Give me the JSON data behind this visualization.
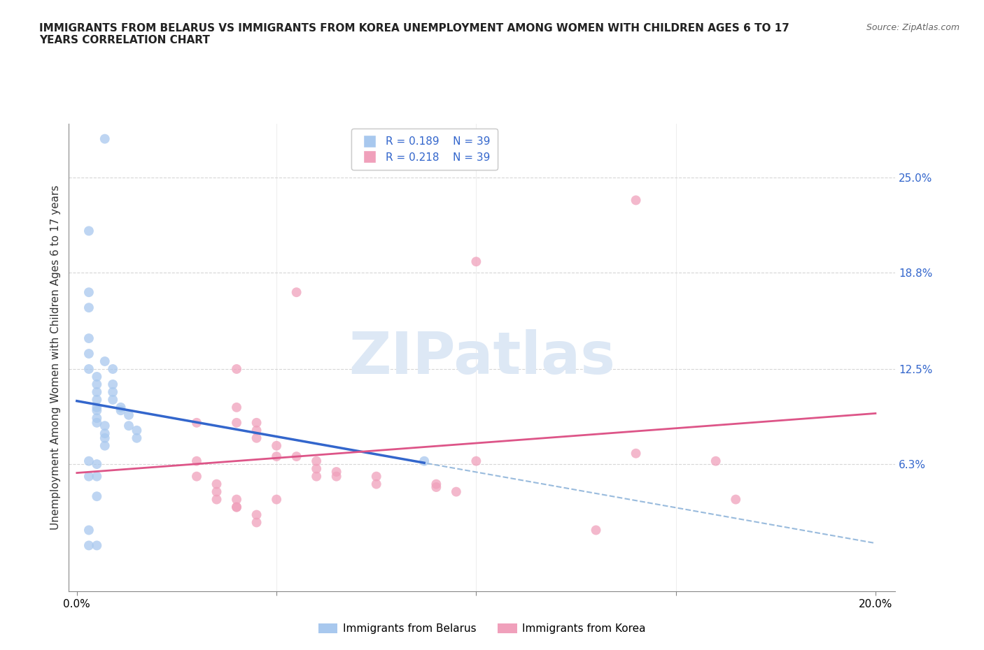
{
  "title": "IMMIGRANTS FROM BELARUS VS IMMIGRANTS FROM KOREA UNEMPLOYMENT AMONG WOMEN WITH CHILDREN AGES 6 TO 17\nYEARS CORRELATION CHART",
  "source": "Source: ZipAtlas.com",
  "ylabel": "Unemployment Among Women with Children Ages 6 to 17 years",
  "ytick_labels": [
    "25.0%",
    "18.8%",
    "12.5%",
    "6.3%"
  ],
  "ytick_values": [
    0.25,
    0.188,
    0.125,
    0.063
  ],
  "xlim": [
    -0.002,
    0.205
  ],
  "ylim": [
    -0.02,
    0.285
  ],
  "belarus_color": "#a8c8ee",
  "korea_color": "#f0a0bb",
  "belarus_line_color": "#3366cc",
  "korea_line_color": "#dd5588",
  "belarus_dashed_color": "#99bbdd",
  "R_belarus": 0.189,
  "N_belarus": 39,
  "R_korea": 0.218,
  "N_korea": 39,
  "belarus_scatter_x": [
    0.007,
    0.003,
    0.003,
    0.003,
    0.003,
    0.003,
    0.003,
    0.005,
    0.005,
    0.005,
    0.005,
    0.005,
    0.005,
    0.005,
    0.005,
    0.007,
    0.007,
    0.007,
    0.007,
    0.009,
    0.009,
    0.009,
    0.009,
    0.011,
    0.011,
    0.013,
    0.013,
    0.015,
    0.015,
    0.003,
    0.005,
    0.005,
    0.007,
    0.087,
    0.003,
    0.003,
    0.003,
    0.005,
    0.005
  ],
  "belarus_scatter_y": [
    0.275,
    0.215,
    0.175,
    0.165,
    0.145,
    0.135,
    0.125,
    0.12,
    0.115,
    0.11,
    0.105,
    0.1,
    0.098,
    0.093,
    0.09,
    0.088,
    0.083,
    0.08,
    0.075,
    0.125,
    0.115,
    0.11,
    0.105,
    0.1,
    0.098,
    0.095,
    0.088,
    0.085,
    0.08,
    0.065,
    0.063,
    0.055,
    0.13,
    0.065,
    0.055,
    0.02,
    0.01,
    0.042,
    0.01
  ],
  "korea_scatter_x": [
    0.14,
    0.1,
    0.055,
    0.04,
    0.04,
    0.04,
    0.045,
    0.045,
    0.045,
    0.05,
    0.05,
    0.055,
    0.06,
    0.06,
    0.06,
    0.065,
    0.065,
    0.075,
    0.075,
    0.09,
    0.09,
    0.095,
    0.1,
    0.05,
    0.03,
    0.03,
    0.03,
    0.035,
    0.035,
    0.035,
    0.04,
    0.04,
    0.04,
    0.045,
    0.045,
    0.16,
    0.165,
    0.13,
    0.14
  ],
  "korea_scatter_y": [
    0.235,
    0.195,
    0.175,
    0.125,
    0.1,
    0.09,
    0.09,
    0.085,
    0.08,
    0.075,
    0.068,
    0.068,
    0.065,
    0.06,
    0.055,
    0.058,
    0.055,
    0.055,
    0.05,
    0.05,
    0.048,
    0.045,
    0.065,
    0.04,
    0.09,
    0.065,
    0.055,
    0.05,
    0.045,
    0.04,
    0.04,
    0.035,
    0.035,
    0.03,
    0.025,
    0.065,
    0.04,
    0.02,
    0.07
  ],
  "background_color": "#ffffff",
  "grid_color": "#cccccc",
  "watermark_text": "ZIPatlas",
  "watermark_fontsize": 60,
  "scatter_size": 100,
  "scatter_alpha": 0.75
}
